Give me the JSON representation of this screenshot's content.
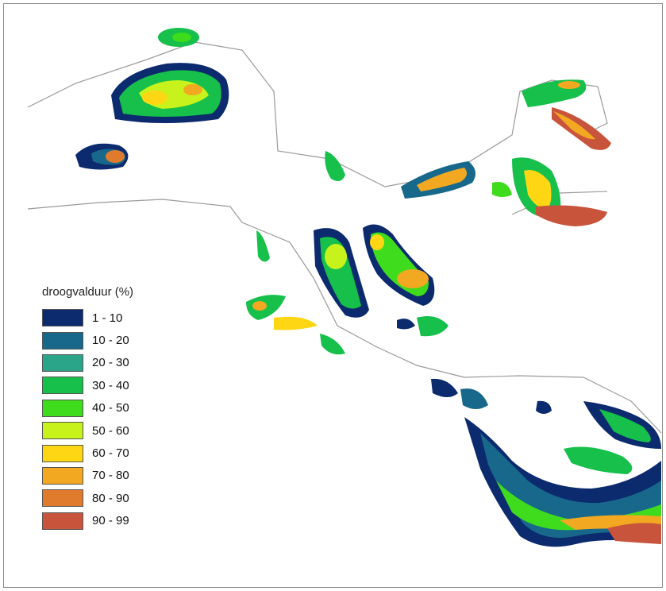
{
  "legend": {
    "title": "droogvalduur (%)",
    "classes": [
      {
        "label": "1 - 10",
        "color": "#0c2a6e"
      },
      {
        "label": "10 - 20",
        "color": "#17688a"
      },
      {
        "label": "20 - 30",
        "color": "#2aa58a"
      },
      {
        "label": "30 - 40",
        "color": "#16c04a"
      },
      {
        "label": "40 - 50",
        "color": "#3fdc1e"
      },
      {
        "label": "50 - 60",
        "color": "#c8f21c"
      },
      {
        "label": "60 - 70",
        "color": "#ffd614"
      },
      {
        "label": "70 - 80",
        "color": "#f2a820"
      },
      {
        "label": "80 - 90",
        "color": "#e07a2c"
      },
      {
        "label": "90 - 99",
        "color": "#c8543c"
      }
    ]
  }
}
